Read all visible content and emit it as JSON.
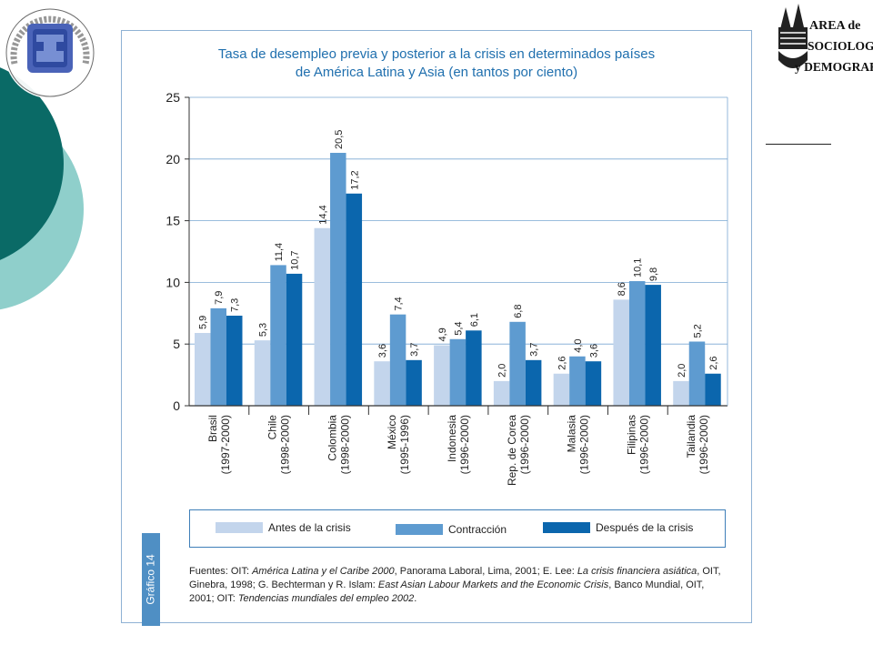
{
  "logo_right": {
    "line1": "AREA de",
    "line2": "SOCIOLOGÍA",
    "line3": "y DEMOGRAFÍA"
  },
  "logo_left": {
    "arc_text": "Universidad Autónoma del Estado de Hidalgo"
  },
  "colors": {
    "antes": "#c3d5ec",
    "contraccion": "#5e9bd0",
    "despues": "#0b66ad",
    "title": "#1f6fae",
    "grid": "#7aa7d2",
    "deco_dark": "#0a6a66",
    "deco_light": "#8fcfcb"
  },
  "chart_data": {
    "type": "bar",
    "title_line1": "Tasa de desempleo previa y posterior a la crisis en determinados países",
    "title_line2": "de América Latina y Asia (en tantos por ciento)",
    "ylim": [
      0,
      25
    ],
    "yticks": [
      0,
      5,
      10,
      15,
      20,
      25
    ],
    "grid": true,
    "legend_position": "bottom",
    "categories": [
      {
        "name": "Brasil",
        "period": "(1997-2000)"
      },
      {
        "name": "Chile",
        "period": "(1998-2000)"
      },
      {
        "name": "Colombia",
        "period": "(1998-2000)"
      },
      {
        "name": "México",
        "period": "(1995-1996)"
      },
      {
        "name": "Indonesia",
        "period": "(1996-2000)"
      },
      {
        "name": "Rep. de Corea",
        "period": "(1996-2000)"
      },
      {
        "name": "Malasia",
        "period": "(1996-2000)"
      },
      {
        "name": "Filipinas",
        "period": "(1996-2000)"
      },
      {
        "name": "Tailandia",
        "period": "(1996-2000)"
      }
    ],
    "series": [
      {
        "name": "Antes de la crisis",
        "values": [
          5.9,
          5.3,
          14.4,
          3.6,
          4.9,
          2.0,
          2.6,
          8.6,
          2.0
        ],
        "labels": [
          "5,9",
          "5,3",
          "14,4",
          "3,6",
          "4,9",
          "2,0",
          "2,6",
          "8,6",
          "2,0"
        ]
      },
      {
        "name": "Contracción",
        "values": [
          7.9,
          11.4,
          20.5,
          7.4,
          5.4,
          6.8,
          4.0,
          10.1,
          5.2
        ],
        "labels": [
          "7,9",
          "11,4",
          "20,5",
          "7,4",
          "5,4",
          "6,8",
          "4,0",
          "10,1",
          "5,2"
        ]
      },
      {
        "name": "Después de la crisis",
        "values": [
          7.3,
          10.7,
          17.2,
          3.7,
          6.1,
          3.7,
          3.6,
          9.8,
          2.6
        ],
        "labels": [
          "7,3",
          "10,7",
          "17,2",
          "3,7",
          "6,1",
          "3,7",
          "3,6",
          "9,8",
          "2,6"
        ]
      }
    ]
  },
  "legend": {
    "items": [
      "Antes de la crisis",
      "Contracción",
      "Después de la crisis"
    ]
  },
  "graph_tab": "Gráfico 14",
  "sources": {
    "p1": "Fuentes: OIT: ",
    "i1": "América Latina y el Caribe 2000",
    "p2": ", Panorama Laboral, Lima, 2001; E. Lee: ",
    "i2": "La crisis financiera asiática",
    "p3": ", OIT, Ginebra, 1998; G. Bechterman y R. Islam: ",
    "i3": "East Asian Labour Markets and the Economic Crisis",
    "p4": ", Banco Mundial, OIT, 2001; OIT: ",
    "i4": "Tendencias mundiales del empleo 2002",
    "p5": "."
  }
}
